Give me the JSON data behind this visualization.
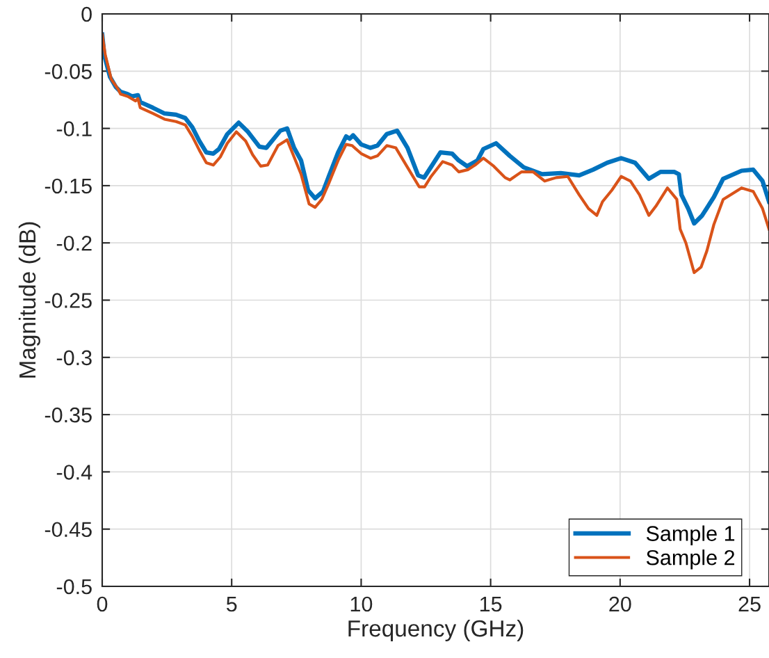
{
  "chart_data": {
    "type": "line",
    "xlabel": "Frequency (GHz)",
    "ylabel": "Magnitude (dB)",
    "xlim": [
      0,
      25.75
    ],
    "xticks": [
      0,
      5,
      10,
      15,
      20,
      25
    ],
    "ylim": [
      -0.5,
      0
    ],
    "yticks": [
      {
        "value": -0.5,
        "label": "-0.5"
      },
      {
        "value": -0.45,
        "label": "-0.45"
      },
      {
        "value": -0.4,
        "label": "-0.4"
      },
      {
        "value": -0.35,
        "label": "-0.35"
      },
      {
        "value": -0.3,
        "label": "-0.3"
      },
      {
        "value": -0.25,
        "label": "-0.25"
      },
      {
        "value": -0.2,
        "label": "-0.2"
      },
      {
        "value": -0.15,
        "label": "-0.15"
      },
      {
        "value": -0.1,
        "label": "-0.1"
      },
      {
        "value": -0.05,
        "label": "-0.05"
      },
      {
        "value": 0,
        "label": "0"
      }
    ],
    "grid": true,
    "legend": "bottom right",
    "marker": "none",
    "line_style": "solid",
    "series": [
      {
        "name": "Sample 1",
        "color": "#0072bd",
        "x": [
          0,
          0.08,
          0.3,
          0.53,
          0.71,
          0.98,
          1.15,
          1.38,
          1.47,
          1.96,
          2.41,
          2.85,
          3.21,
          3.48,
          3.75,
          4.02,
          4.29,
          4.51,
          4.83,
          5.27,
          5.63,
          6.07,
          6.34,
          6.88,
          7.14,
          7.41,
          7.68,
          7.95,
          8.22,
          8.53,
          8.75,
          9.11,
          9.42,
          9.56,
          9.69,
          10.0,
          10.36,
          10.63,
          10.99,
          11.39,
          11.79,
          12.2,
          12.43,
          12.69,
          13.06,
          13.51,
          13.77,
          14.09,
          14.49,
          14.72,
          15.21,
          15.74,
          16.28,
          16.99,
          17.71,
          18.42,
          18.96,
          19.5,
          20.04,
          20.58,
          21.11,
          21.56,
          22.1,
          22.27,
          22.37,
          22.63,
          22.86,
          23.17,
          23.62,
          23.98,
          24.69,
          25.14,
          25.5,
          25.75
        ],
        "values": [
          -0.018,
          -0.036,
          -0.055,
          -0.064,
          -0.068,
          -0.07,
          -0.072,
          -0.071,
          -0.077,
          -0.082,
          -0.087,
          -0.088,
          -0.091,
          -0.099,
          -0.111,
          -0.121,
          -0.122,
          -0.118,
          -0.105,
          -0.095,
          -0.103,
          -0.116,
          -0.117,
          -0.102,
          -0.1,
          -0.117,
          -0.128,
          -0.154,
          -0.161,
          -0.155,
          -0.142,
          -0.121,
          -0.107,
          -0.109,
          -0.106,
          -0.114,
          -0.117,
          -0.115,
          -0.105,
          -0.102,
          -0.117,
          -0.141,
          -0.143,
          -0.134,
          -0.121,
          -0.122,
          -0.128,
          -0.133,
          -0.128,
          -0.118,
          -0.113,
          -0.124,
          -0.134,
          -0.14,
          -0.139,
          -0.141,
          -0.136,
          -0.13,
          -0.126,
          -0.13,
          -0.144,
          -0.138,
          -0.138,
          -0.14,
          -0.158,
          -0.17,
          -0.183,
          -0.176,
          -0.16,
          -0.144,
          -0.137,
          -0.136,
          -0.146,
          -0.164
        ]
      },
      {
        "name": "Sample 2",
        "color": "#d95319",
        "x": [
          0,
          0.12,
          0.35,
          0.62,
          0.71,
          0.98,
          1.29,
          1.38,
          1.47,
          1.96,
          2.41,
          2.85,
          3.21,
          3.48,
          3.75,
          4.02,
          4.29,
          4.56,
          4.83,
          5.18,
          5.54,
          5.81,
          6.12,
          6.39,
          6.79,
          7.14,
          7.41,
          7.68,
          7.99,
          8.22,
          8.48,
          8.75,
          9.11,
          9.42,
          9.65,
          10.0,
          10.36,
          10.63,
          10.99,
          11.34,
          11.79,
          12.24,
          12.45,
          12.7,
          13.15,
          13.51,
          13.77,
          14.13,
          14.4,
          14.72,
          15.12,
          15.56,
          15.74,
          16.19,
          16.64,
          17.09,
          17.53,
          17.98,
          18.42,
          18.78,
          19.1,
          19.32,
          19.68,
          20.04,
          20.4,
          20.75,
          21.11,
          21.38,
          21.83,
          22.19,
          22.32,
          22.54,
          22.86,
          23.13,
          23.35,
          23.62,
          23.98,
          24.69,
          25.14,
          25.5,
          25.75
        ],
        "values": [
          -0.018,
          -0.036,
          -0.057,
          -0.066,
          -0.07,
          -0.072,
          -0.076,
          -0.074,
          -0.082,
          -0.087,
          -0.092,
          -0.094,
          -0.097,
          -0.107,
          -0.119,
          -0.13,
          -0.132,
          -0.125,
          -0.113,
          -0.103,
          -0.111,
          -0.123,
          -0.133,
          -0.132,
          -0.115,
          -0.11,
          -0.125,
          -0.14,
          -0.166,
          -0.169,
          -0.162,
          -0.148,
          -0.128,
          -0.114,
          -0.115,
          -0.122,
          -0.126,
          -0.124,
          -0.115,
          -0.117,
          -0.134,
          -0.151,
          -0.151,
          -0.142,
          -0.129,
          -0.132,
          -0.138,
          -0.136,
          -0.132,
          -0.126,
          -0.133,
          -0.143,
          -0.145,
          -0.138,
          -0.138,
          -0.146,
          -0.143,
          -0.142,
          -0.158,
          -0.17,
          -0.176,
          -0.164,
          -0.154,
          -0.142,
          -0.146,
          -0.158,
          -0.176,
          -0.168,
          -0.152,
          -0.162,
          -0.188,
          -0.2,
          -0.226,
          -0.221,
          -0.207,
          -0.184,
          -0.162,
          -0.152,
          -0.155,
          -0.17,
          -0.188
        ]
      }
    ]
  }
}
